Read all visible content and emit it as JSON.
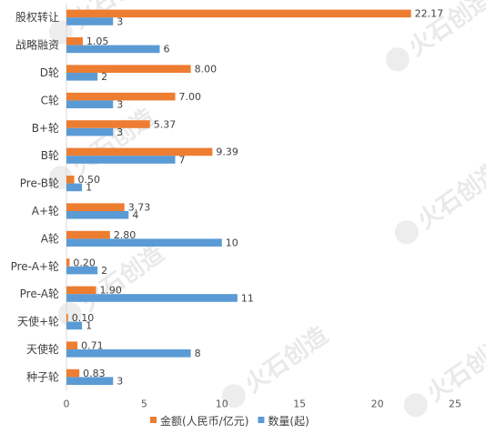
{
  "chart_data": {
    "type": "bar",
    "orientation": "horizontal",
    "categories": [
      "股权转让",
      "战略融资",
      "D轮",
      "C轮",
      "B+轮",
      "B轮",
      "Pre-B轮",
      "A+轮",
      "A轮",
      "Pre-A+轮",
      "Pre-A轮",
      "天使+轮",
      "天使轮",
      "种子轮"
    ],
    "series": [
      {
        "name": "金额(人民币/亿元)",
        "color": "#ed7d31",
        "values": [
          22.17,
          1.05,
          8.0,
          7.0,
          5.37,
          9.39,
          0.5,
          3.73,
          2.8,
          0.2,
          1.9,
          0.1,
          0.71,
          0.83
        ],
        "labels": [
          "22.17",
          "1.05",
          "8.00",
          "7.00",
          "5.37",
          "9.39",
          "0.50",
          "3.73",
          "2.80",
          "0.20",
          "1.90",
          "0.10",
          "0.71",
          "0.83"
        ]
      },
      {
        "name": "数量(起)",
        "color": "#5b9bd5",
        "values": [
          3,
          6,
          2,
          3,
          3,
          7,
          1,
          4,
          10,
          2,
          11,
          1,
          8,
          3
        ],
        "labels": [
          "3",
          "6",
          "2",
          "3",
          "3",
          "7",
          "1",
          "4",
          "10",
          "2",
          "11",
          "1",
          "8",
          "3"
        ]
      }
    ],
    "xlim": [
      0,
      25
    ],
    "xticks": [
      "0",
      "5",
      "10",
      "15",
      "20",
      "25"
    ],
    "grid": false,
    "legend_position": "bottom",
    "title": "",
    "xlabel": "",
    "ylabel": ""
  },
  "watermark": {
    "text": "火石创造",
    "color": "#e9e9e9"
  }
}
